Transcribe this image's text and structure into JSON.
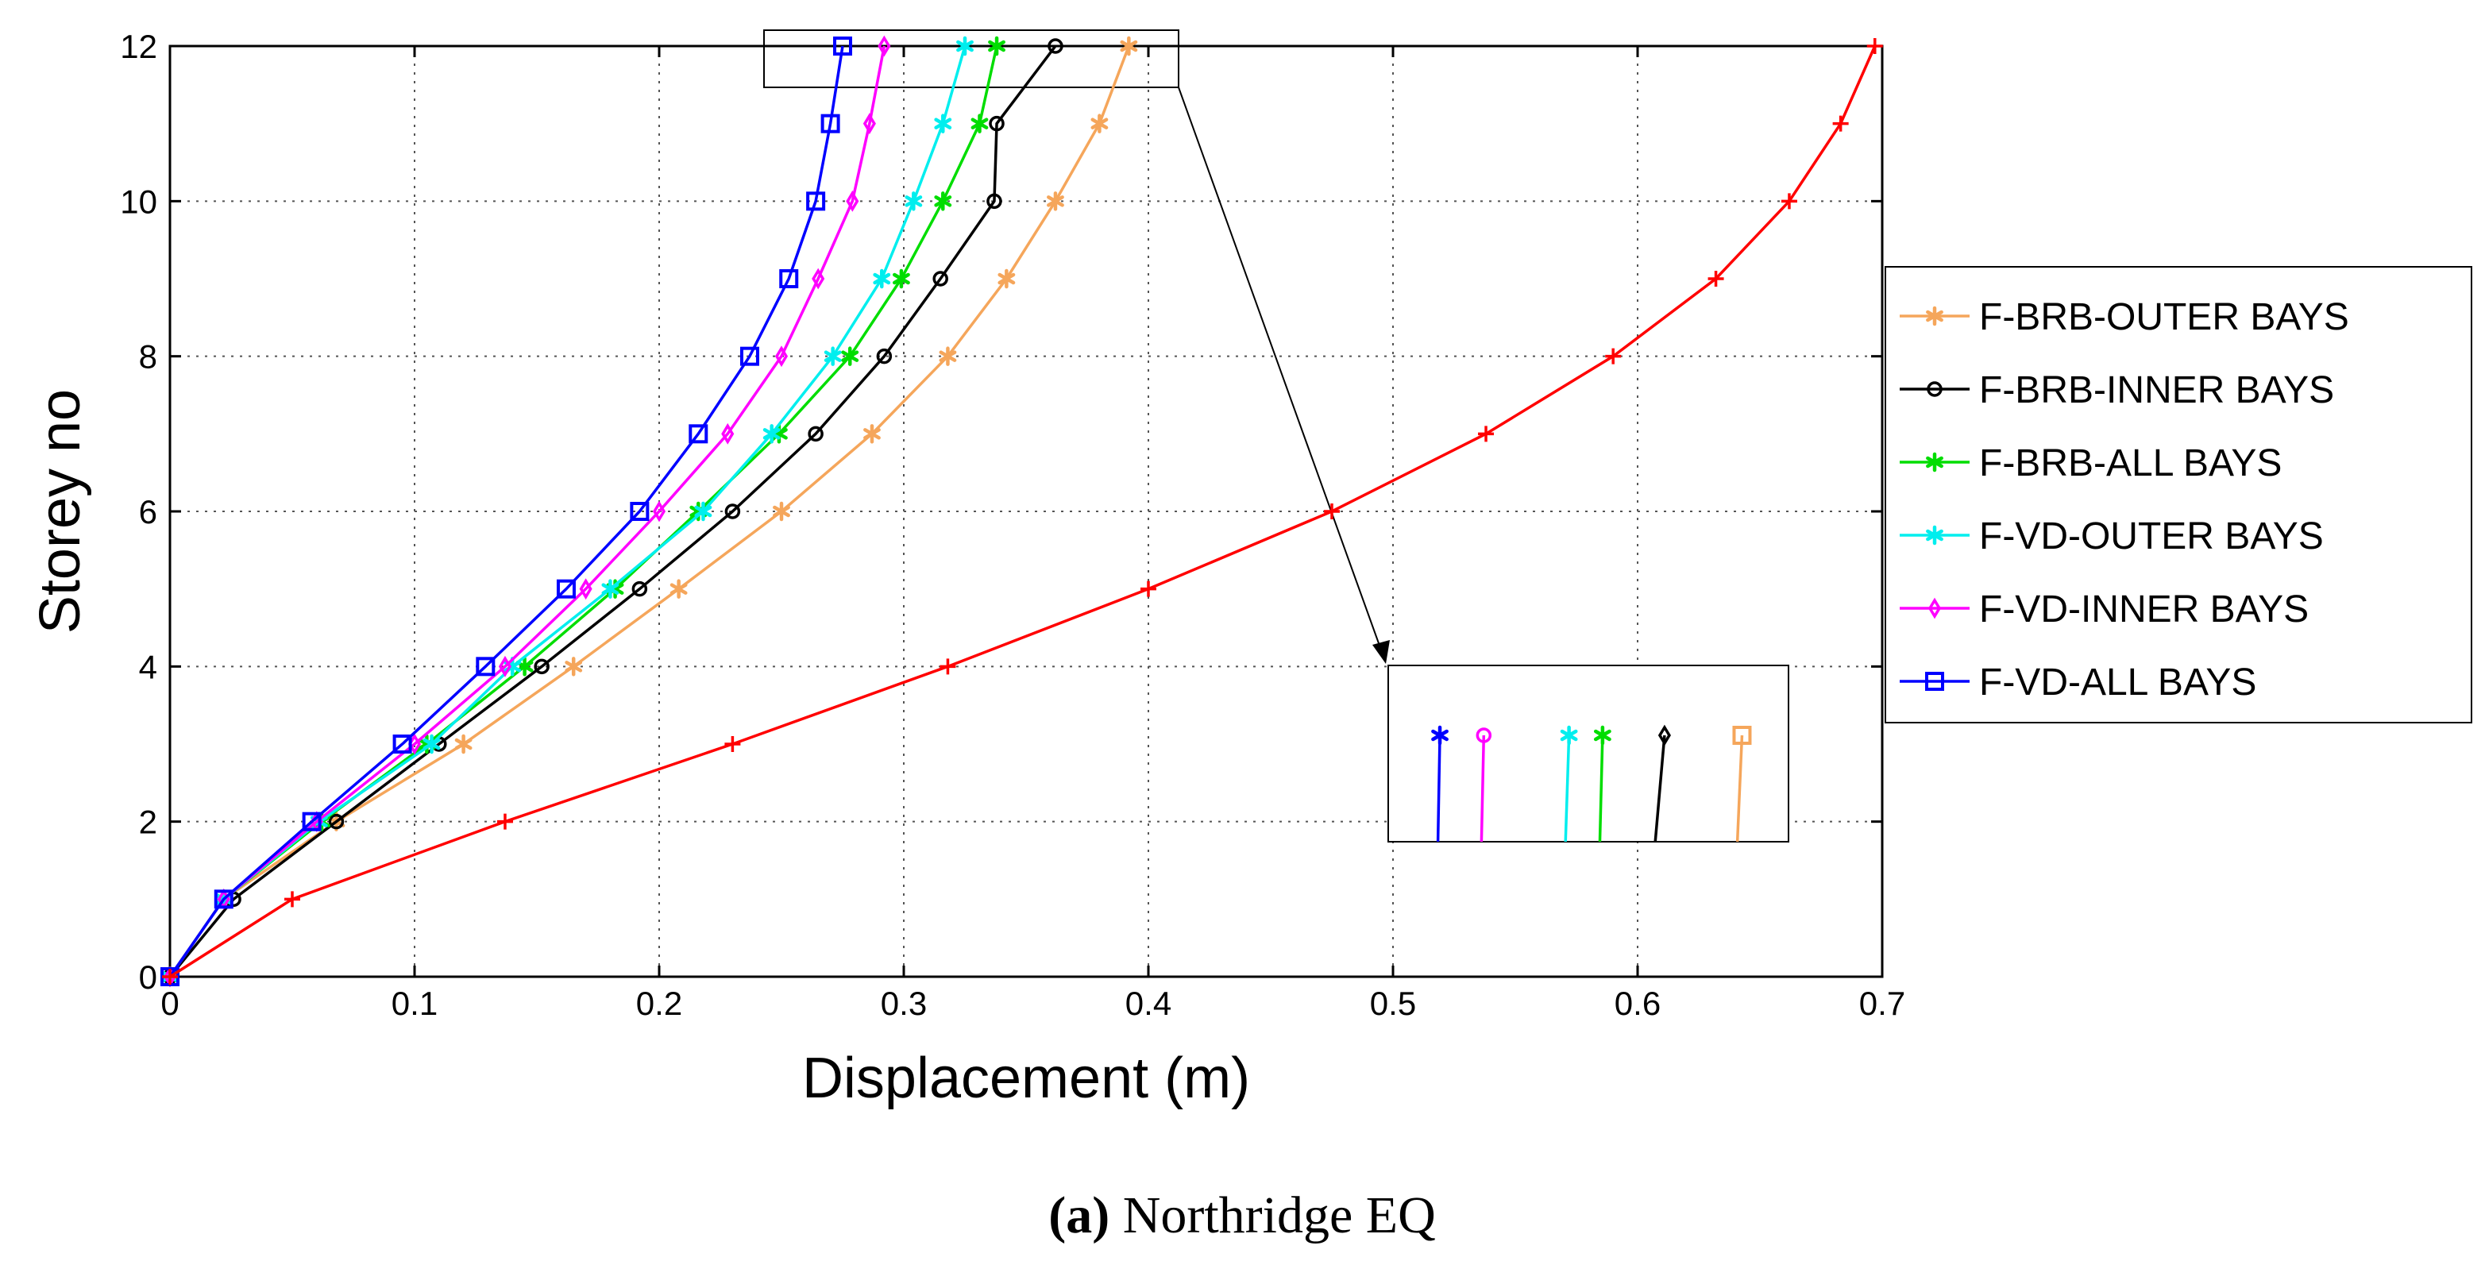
{
  "chart_data": {
    "type": "line",
    "xlabel": "Displacement (m)",
    "ylabel": "Storey no",
    "xlim": [
      0,
      0.7
    ],
    "ylim": [
      0,
      12
    ],
    "x_ticks": [
      "0",
      "0.1",
      "0.2",
      "0.3",
      "0.4",
      "0.5",
      "0.6",
      "0.7"
    ],
    "y_ticks": [
      "0",
      "2",
      "4",
      "6",
      "8",
      "10",
      "12"
    ],
    "grid": true,
    "legend_position": "right",
    "storeys": [
      0,
      1,
      2,
      3,
      4,
      5,
      6,
      7,
      8,
      9,
      10,
      11,
      12
    ],
    "series": [
      {
        "name": "F-BRB-OUTER BAYS",
        "color": "#f5a65b",
        "marker": "star",
        "displacement": [
          0,
          0.022,
          0.068,
          0.12,
          0.165,
          0.208,
          0.25,
          0.287,
          0.318,
          0.342,
          0.362,
          0.38,
          0.392
        ]
      },
      {
        "name": "F-BRB-INNER BAYS",
        "color": "#000000",
        "marker": "circle",
        "displacement": [
          0,
          0.026,
          0.068,
          0.11,
          0.152,
          0.192,
          0.23,
          0.264,
          0.292,
          0.315,
          0.337,
          0.338,
          0.362
        ]
      },
      {
        "name": "F-BRB-ALL BAYS",
        "color": "#00dd00",
        "marker": "star",
        "displacement": [
          0,
          0.022,
          0.062,
          0.105,
          0.145,
          0.182,
          0.216,
          0.249,
          0.278,
          0.299,
          0.316,
          0.331,
          0.338
        ]
      },
      {
        "name": "F-VD-OUTER BAYS",
        "color": "#00eeee",
        "marker": "star",
        "displacement": [
          0,
          0.022,
          0.061,
          0.107,
          0.14,
          0.18,
          0.218,
          0.246,
          0.271,
          0.291,
          0.304,
          0.316,
          0.325
        ]
      },
      {
        "name": "F-VD-INNER BAYS",
        "color": "#ff00ff",
        "marker": "diamond",
        "displacement": [
          0,
          0.022,
          0.06,
          0.1,
          0.137,
          0.17,
          0.2,
          0.228,
          0.25,
          0.265,
          0.279,
          0.286,
          0.292
        ]
      },
      {
        "name": "F-VD-ALL BAYS",
        "color": "#0000ff",
        "marker": "square",
        "displacement": [
          0,
          0.022,
          0.058,
          0.095,
          0.129,
          0.162,
          0.192,
          0.216,
          0.237,
          0.253,
          0.264,
          0.27,
          0.275
        ]
      },
      {
        "name": "",
        "color": "#ff0000",
        "marker": "plus",
        "displacement": [
          0,
          0.05,
          0.137,
          0.23,
          0.318,
          0.4,
          0.475,
          0.538,
          0.59,
          0.632,
          0.662,
          0.683,
          0.697
        ]
      }
    ],
    "inset_markers": [
      "square",
      "diamond",
      "star",
      "star",
      "circle",
      "star"
    ],
    "caption_bold": "(a)",
    "caption_text": " Northridge EQ"
  }
}
